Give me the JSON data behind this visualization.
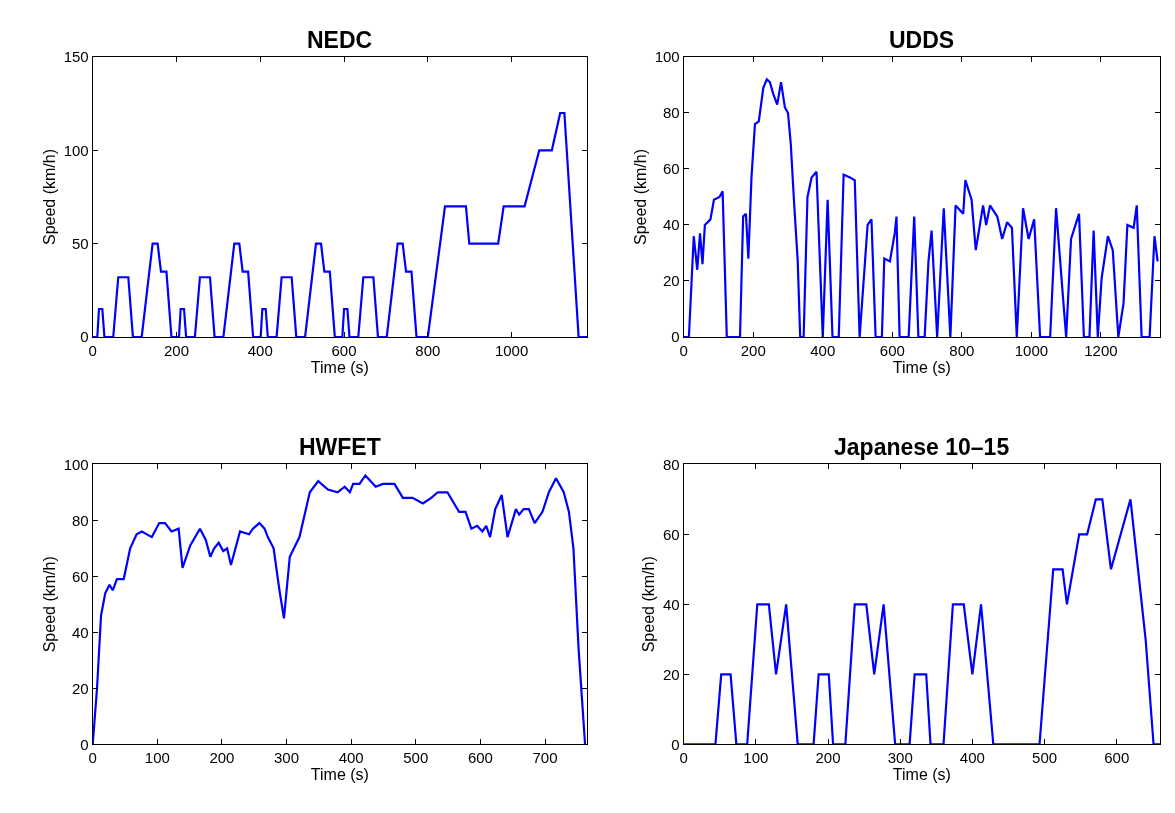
{
  "chart_data": [
    {
      "type": "line",
      "title": "NEDC",
      "xlabel": "Time (s)",
      "ylabel": "Speed (km/h)",
      "x": [
        0,
        11,
        15,
        23,
        28,
        49,
        61,
        85,
        96,
        117,
        143,
        155,
        163,
        176,
        188,
        206,
        210,
        218,
        223,
        244,
        256,
        280,
        291,
        312,
        338,
        350,
        358,
        371,
        383,
        401,
        405,
        413,
        418,
        439,
        451,
        475,
        486,
        507,
        533,
        545,
        553,
        566,
        578,
        596,
        600,
        608,
        613,
        634,
        646,
        670,
        681,
        702,
        728,
        740,
        748,
        761,
        773,
        800,
        841,
        891,
        899,
        968,
        981,
        1031,
        1066,
        1096,
        1116,
        1126,
        1160,
        1180
      ],
      "series": [
        {
          "color": "#0000ff",
          "values": [
            0,
            0,
            15,
            15,
            0,
            0,
            32,
            32,
            0,
            0,
            50,
            50,
            35,
            35,
            0,
            0,
            15,
            15,
            0,
            0,
            32,
            32,
            0,
            0,
            50,
            50,
            35,
            35,
            0,
            0,
            15,
            15,
            0,
            0,
            32,
            32,
            0,
            0,
            50,
            50,
            35,
            35,
            0,
            0,
            15,
            15,
            0,
            0,
            32,
            32,
            0,
            0,
            50,
            50,
            35,
            35,
            0,
            0,
            70,
            70,
            50,
            50,
            70,
            70,
            100,
            100,
            120,
            120,
            0,
            0
          ]
        }
      ],
      "xlim": [
        0,
        1180
      ],
      "ylim": [
        0,
        150
      ],
      "xticks": [
        0,
        200,
        400,
        600,
        800,
        1000
      ],
      "yticks": [
        0,
        50,
        100,
        150
      ]
    },
    {
      "type": "line",
      "title": "UDDS",
      "xlabel": "Time (s)",
      "ylabel": "Speed (km/h)",
      "x": [
        0,
        15,
        29,
        39,
        47,
        54,
        61,
        77,
        87,
        103,
        112,
        124,
        162,
        171,
        179,
        186,
        195,
        205,
        216,
        229,
        239,
        248,
        257,
        269,
        280,
        291,
        300,
        308,
        317,
        328,
        335,
        345,
        356,
        368,
        382,
        400,
        414,
        428,
        446,
        460,
        478,
        492,
        506,
        529,
        540,
        552,
        570,
        577,
        593,
        607,
        612,
        621,
        647,
        663,
        675,
        693,
        704,
        713,
        729,
        748,
        767,
        782,
        804,
        810,
        828,
        840,
        861,
        870,
        881,
        902,
        916,
        930,
        944,
        958,
        976,
        992,
        1008,
        1025,
        1054,
        1071,
        1091,
        1100,
        1114,
        1137,
        1151,
        1167,
        1179,
        1191,
        1202,
        1220,
        1234,
        1250,
        1265,
        1276,
        1294,
        1303,
        1317,
        1340,
        1354,
        1363
      ],
      "series": [
        {
          "color": "#0000ff",
          "values": [
            0,
            0,
            36,
            24,
            37,
            26,
            40,
            42,
            49,
            50,
            52,
            0,
            0,
            43,
            44,
            28,
            57,
            76,
            77,
            89,
            92,
            91,
            87,
            83,
            91,
            82,
            80,
            69,
            49,
            27,
            0,
            0,
            50,
            57,
            59,
            0,
            49,
            0,
            0,
            58,
            57,
            56,
            0,
            40,
            42,
            0,
            0,
            28,
            27,
            37,
            43,
            0,
            0,
            43,
            0,
            0,
            27,
            38,
            0,
            46,
            0,
            47,
            44,
            56,
            49,
            31,
            47,
            40,
            47,
            43,
            35,
            41,
            39,
            0,
            46,
            35,
            42,
            0,
            0,
            46,
            14,
            0,
            35,
            44,
            0,
            0,
            38,
            0,
            21,
            36,
            31,
            0,
            12,
            40,
            39,
            47,
            0,
            0,
            36,
            27
          ]
        }
      ],
      "xlim": [
        0,
        1370
      ],
      "ylim": [
        0,
        100
      ],
      "xticks": [
        0,
        200,
        400,
        600,
        800,
        1000,
        1200
      ],
      "yticks": [
        0,
        20,
        40,
        60,
        80,
        100
      ]
    },
    {
      "type": "line",
      "title": "HWFET",
      "xlabel": "Time (s)",
      "ylabel": "Speed (km/h)",
      "x": [
        0,
        6.7,
        12.9,
        19.5,
        26,
        31,
        37.5,
        48,
        58,
        68,
        76,
        91.5,
        103,
        112,
        122,
        133,
        139,
        151,
        166,
        175,
        182,
        188,
        195,
        202,
        208,
        214,
        228,
        242,
        248,
        258,
        266,
        271,
        280,
        289,
        296,
        305,
        320,
        336,
        349,
        364,
        379,
        390,
        398,
        403,
        413,
        422,
        438,
        449,
        467,
        480,
        495,
        511,
        524,
        534,
        549,
        567,
        577,
        586,
        595,
        603,
        609,
        615,
        623,
        633,
        642,
        655,
        660,
        667,
        675,
        684,
        696,
        706,
        717,
        729,
        737,
        744,
        752,
        762
      ],
      "series": [
        {
          "color": "#0000ff",
          "values": [
            0,
            20,
            46,
            54,
            57,
            55,
            59,
            59,
            70,
            75,
            76,
            74,
            79,
            79,
            76,
            77,
            63,
            71,
            77,
            73,
            67,
            70,
            72,
            69,
            70,
            64,
            76,
            75,
            77,
            79,
            77,
            74,
            70,
            55,
            45,
            67,
            74,
            90,
            94,
            91,
            90,
            92,
            90,
            93,
            93,
            96,
            92,
            93,
            93,
            88,
            88,
            86,
            88,
            90,
            90,
            83,
            83,
            77,
            78,
            76,
            78,
            74,
            84,
            89,
            74,
            84,
            82,
            84,
            84,
            79,
            83,
            90,
            95,
            90,
            83,
            70,
            34,
            0
          ]
        }
      ],
      "xlim": [
        0,
        765
      ],
      "ylim": [
        0,
        100
      ],
      "xticks": [
        0,
        100,
        200,
        300,
        400,
        500,
        600,
        700
      ],
      "yticks": [
        0,
        20,
        40,
        60,
        80,
        100
      ]
    },
    {
      "type": "line",
      "title": "Japanese 10–15",
      "xlabel": "Time (s)",
      "ylabel": "Speed (km/h)",
      "x": [
        0,
        44,
        52,
        65,
        73,
        88,
        102,
        118,
        128,
        142,
        158,
        180,
        187,
        201,
        207,
        224,
        237,
        253,
        264,
        277,
        293,
        313,
        320,
        336,
        342,
        360,
        373,
        388,
        400,
        412,
        429,
        493,
        512,
        525,
        531,
        548,
        559,
        571,
        580,
        592,
        619,
        640,
        651,
        660
      ],
      "series": [
        {
          "color": "#0000ff",
          "values": [
            0,
            0,
            20,
            20,
            0,
            0,
            40,
            40,
            20,
            40,
            0,
            0,
            20,
            20,
            0,
            0,
            40,
            40,
            20,
            40,
            0,
            0,
            20,
            20,
            0,
            0,
            40,
            40,
            20,
            40,
            0,
            0,
            50,
            50,
            40,
            60,
            60,
            70,
            70,
            50,
            70,
            30,
            0,
            0
          ]
        }
      ],
      "xlim": [
        0,
        660
      ],
      "ylim": [
        0,
        80
      ],
      "xticks": [
        0,
        100,
        200,
        300,
        400,
        500,
        600
      ],
      "yticks": [
        0,
        20,
        40,
        60,
        80
      ]
    }
  ]
}
